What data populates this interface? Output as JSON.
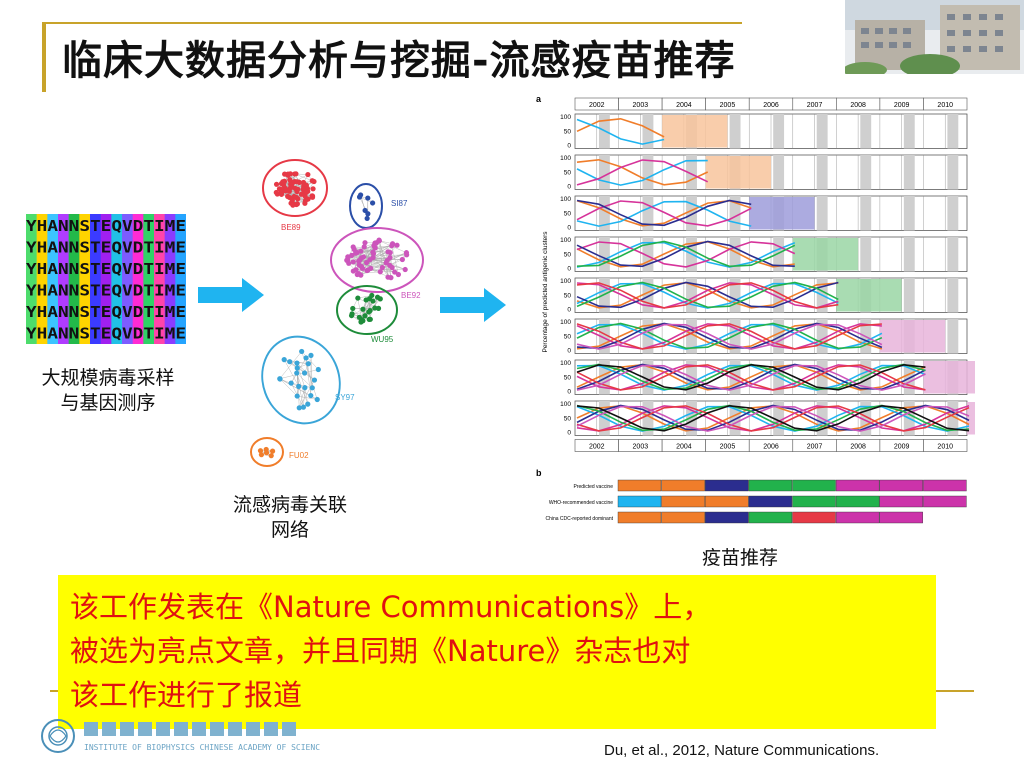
{
  "slide": {
    "title": "临床大数据分析与挖掘-流感疫苗推荐"
  },
  "left_panel": {
    "sequences": [
      "YHANNSTEQVDTIME",
      "YHANNSTEQVDTIME",
      "YHANNSTEQVDTIME",
      "YHANNSTEQVDTIME",
      "YHANNSTEQVDTIME",
      "YHANNSTEQVDTIME"
    ],
    "caption_line1": "大规模病毒采样",
    "caption_line2": "与基因测序"
  },
  "network": {
    "clusters": [
      "BE89",
      "SI87",
      "BE92",
      "WU95",
      "SY97",
      "FU02"
    ],
    "caption_line1": "流感病毒关联",
    "caption_line2": "网络"
  },
  "chart": {
    "panel_a_label": "a",
    "panel_b_label": "b",
    "ylabel": "Percentage of predicted antigenic clusters",
    "years": [
      "2002",
      "2003",
      "2004",
      "2005",
      "2006",
      "2007",
      "2008",
      "2009",
      "2010"
    ],
    "yticks": [
      "0",
      "50",
      "100"
    ],
    "row_labels": [
      "Predicted vaccine",
      "WHO-recommended vaccine",
      "China CDC-reported dominant"
    ],
    "caption": "疫苗推荐"
  },
  "highlight": {
    "line1": "该工作发表在《Nature Communications》上，",
    "line2": "被选为亮点文章，并且同期《Nature》杂志也对",
    "line3": "该工作进行了报道"
  },
  "footer": {
    "institute": "INSTITUTE OF BIOPHYSICS CHINESE ACADEMY OF SCIENCES",
    "citation": "Du, et  al., 2012, Nature Communications."
  },
  "colors": {
    "accent_gold": "#c8a32a",
    "highlight_bg": "#ffff00",
    "highlight_text": "#e01111",
    "arrow": "#1fb4f0",
    "BE89": "#e63946",
    "SI87": "#2b4fa8",
    "BE92": "#cc55bb",
    "WU95": "#1e8c3a",
    "SY97": "#3aa5d8",
    "FU02": "#f07d2a"
  }
}
